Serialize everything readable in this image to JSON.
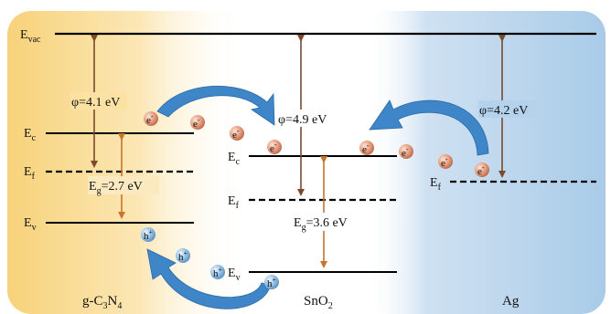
{
  "levels": {
    "vacuum": {
      "main": "E",
      "sub": "vac"
    },
    "gcn": {
      "ec": {
        "main": "E",
        "sub": "c"
      },
      "ef": {
        "main": "E",
        "sub": "f"
      },
      "ev": {
        "main": "E",
        "sub": "v"
      }
    },
    "sno2": {
      "ec": {
        "main": "E",
        "sub": "c"
      },
      "ef": {
        "main": "E",
        "sub": "f"
      },
      "ev": {
        "main": "E",
        "sub": "v"
      }
    },
    "ag": {
      "ef": {
        "main": "E",
        "sub": "f"
      }
    }
  },
  "work_functions": {
    "gcn": "φ=4.1 eV",
    "sno2": "φ=4.9 eV",
    "ag": "φ=4.2 eV"
  },
  "band_gaps": {
    "gcn": {
      "main": "E",
      "sub": "g",
      "value": "=2.7 eV"
    },
    "sno2": {
      "main": "E",
      "sub": "g",
      "value": "=3.6 eV"
    }
  },
  "materials": {
    "gcn": {
      "a": "g-C",
      "s1": "3",
      "b": "N",
      "s2": "4"
    },
    "sno2": {
      "a": "SnO",
      "s1": "2"
    },
    "ag": "Ag"
  },
  "carriers": {
    "electron": {
      "main": "e",
      "sup": "-"
    },
    "hole": {
      "main": "h",
      "sup": "+"
    }
  },
  "colors": {
    "gcn_region": "#f8d98a",
    "ag_region": "#a9cbe8",
    "arrow_brown": "#7a4a2a",
    "arrow_orange": "#c8742c",
    "transfer_arrow": "#3f86c9",
    "electron": "#d9876a",
    "hole": "#7fb3de"
  }
}
